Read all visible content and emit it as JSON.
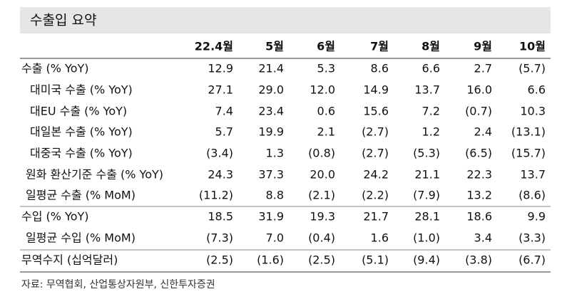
{
  "title": "수출입 요약",
  "table": {
    "columns": [
      "22.4월",
      "5월",
      "6월",
      "7월",
      "8월",
      "9월",
      "10월"
    ],
    "rows": [
      [
        "수출 (% YoY)",
        "12.9",
        "21.4",
        "5.3",
        "8.6",
        "6.6",
        "2.7",
        "(5.7)"
      ],
      [
        "대미국 수출 (% YoY)",
        "27.1",
        "29.0",
        "12.0",
        "14.9",
        "13.7",
        "16.0",
        "6.6"
      ],
      [
        "대EU 수출 (% YoY)",
        "7.4",
        "23.4",
        "0.6",
        "15.6",
        "7.2",
        "(0.7)",
        "10.3"
      ],
      [
        "대일본 수출 (% YoY)",
        "5.7",
        "19.9",
        "2.1",
        "(2.7)",
        "1.2",
        "2.4",
        "(13.1)"
      ],
      [
        "대중국 수출 (% YoY)",
        "(3.4)",
        "1.3",
        "(0.8)",
        "(2.7)",
        "(5.3)",
        "(6.5)",
        "(15.7)"
      ],
      [
        "원화 환산기준 수출 (% YoY)",
        "24.3",
        "37.3",
        "20.0",
        "24.2",
        "21.1",
        "22.3",
        "13.7"
      ],
      [
        "일평균 수출 (% MoM)",
        "(11.2)",
        "8.8",
        "(2.1)",
        "(2.2)",
        "(7.9)",
        "13.2",
        "(8.6)"
      ],
      [
        "수입 (% YoY)",
        "18.5",
        "31.9",
        "19.3",
        "21.7",
        "28.1",
        "18.6",
        "9.9"
      ],
      [
        "일평균 수입 (% MoM)",
        "(7.3)",
        "7.0",
        "(0.4)",
        "1.6",
        "(1.0)",
        "3.4",
        "(3.3)"
      ],
      [
        "무역수지 (십억달러)",
        "(2.5)",
        "(1.6)",
        "(2.5)",
        "(5.1)",
        "(9.4)",
        "(3.8)",
        "(6.7)"
      ]
    ]
  },
  "source": "자료: 무역협회, 산업통상자원부, 신한투자증권"
}
